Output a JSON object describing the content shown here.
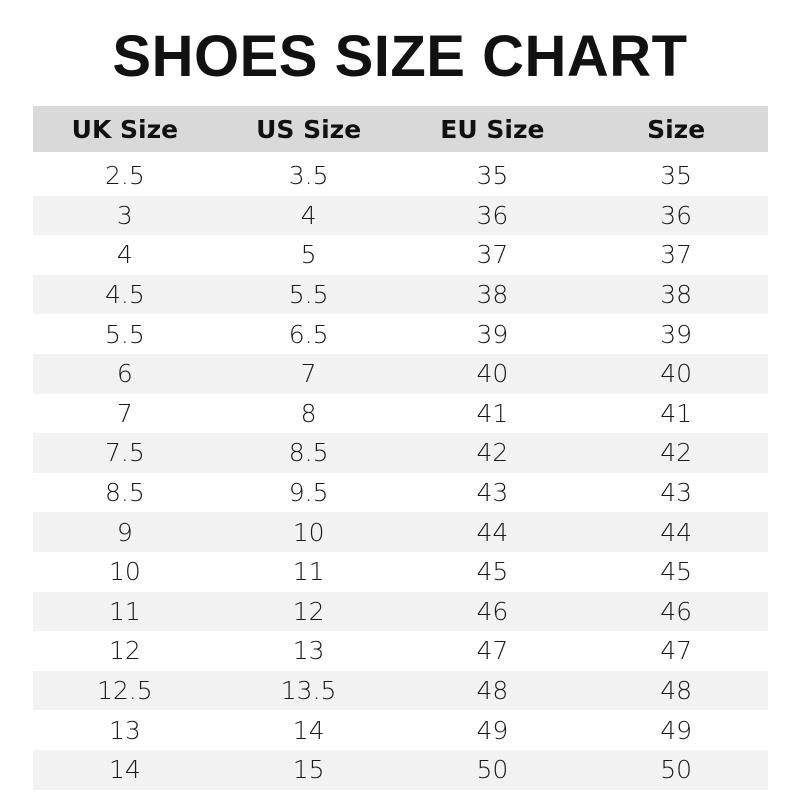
{
  "title": "SHOES SIZE CHART",
  "headers": [
    "UK Size",
    "US Size",
    "EU Size",
    "Size"
  ],
  "rows": [
    [
      "2.5",
      "3.5",
      "35",
      "35"
    ],
    [
      "3",
      "4",
      "36",
      "36"
    ],
    [
      "4",
      "5",
      "37",
      "37"
    ],
    [
      "4.5",
      "5.5",
      "38",
      "38"
    ],
    [
      "5.5",
      "6.5",
      "39",
      "39"
    ],
    [
      "6",
      "7",
      "40",
      "40"
    ],
    [
      "7",
      "8",
      "41",
      "41"
    ],
    [
      "7.5",
      "8.5",
      "42",
      "42"
    ],
    [
      "8.5",
      "9.5",
      "43",
      "43"
    ],
    [
      "9",
      "10",
      "44",
      "44"
    ],
    [
      "10",
      "11",
      "45",
      "45"
    ],
    [
      "11",
      "12",
      "46",
      "46"
    ],
    [
      "12",
      "13",
      "47",
      "47"
    ],
    [
      "12.5",
      "13.5",
      "48",
      "48"
    ],
    [
      "13",
      "14",
      "49",
      "49"
    ],
    [
      "14",
      "15",
      "50",
      "50"
    ]
  ],
  "colors": {
    "header_bg": "#d9d9d9",
    "stripe_bg": "#f2f2f2",
    "text": "#111111"
  }
}
